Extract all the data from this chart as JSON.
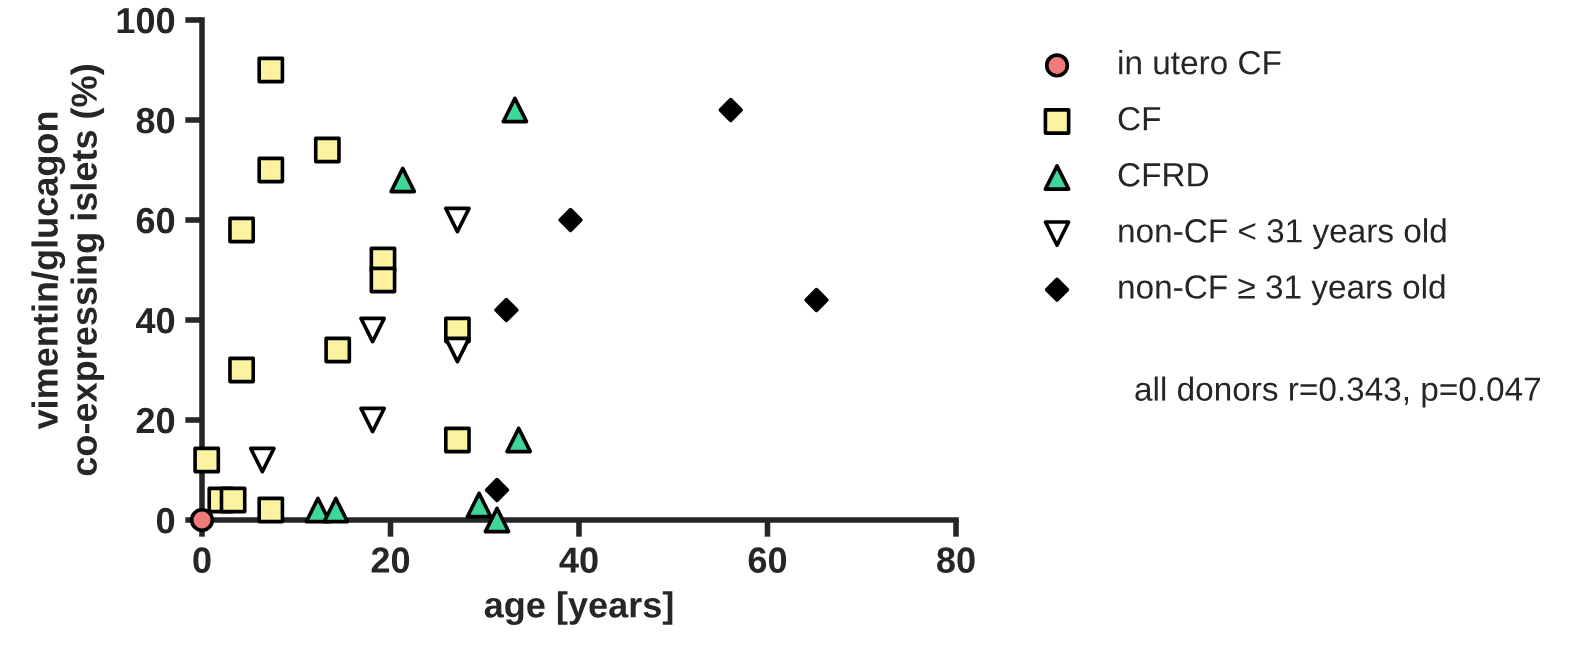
{
  "chart_data": {
    "type": "scatter",
    "xlabel": "age [years]",
    "ylabel": "vimentin/glucagon\nco-expressing islets (%)",
    "xlim": [
      0,
      80
    ],
    "xticks": [
      0,
      20,
      40,
      60,
      80
    ],
    "ylim": [
      0,
      100
    ],
    "yticks": [
      0,
      20,
      40,
      60,
      80,
      100
    ],
    "grid": false,
    "legend": "right",
    "annotations": [
      "all donors r=0.343, p=0.047"
    ],
    "series": [
      {
        "name": "in utero CF",
        "color": "#f07a7a",
        "marker": "circle",
        "x": [
          0
        ],
        "values": [
          0
        ]
      },
      {
        "name": "CF",
        "color": "#fbf3a0",
        "marker": "square",
        "x": [
          0.5,
          2,
          3.3,
          7.3,
          4.2,
          4.2,
          7.3,
          7.3,
          13.3,
          14.4,
          19.2,
          19.2,
          27.1,
          27.1
        ],
        "values": [
          12,
          4,
          4,
          2,
          58,
          30,
          90,
          70,
          74,
          34,
          52,
          48,
          38,
          16
        ]
      },
      {
        "name": "CFRD",
        "color": "#3fd69a",
        "marker": "triangle",
        "x": [
          12.3,
          14.2,
          21.3,
          33.2,
          33.6,
          29.4,
          31.3
        ],
        "values": [
          2,
          2,
          68,
          82,
          16,
          3,
          0
        ]
      },
      {
        "name": "non-CF < 31 years old",
        "color": "#ffffff",
        "marker": "triangle_down",
        "x": [
          6.4,
          18.1,
          18.1,
          27.1,
          27.1
        ],
        "values": [
          12,
          38,
          20,
          60,
          34
        ]
      },
      {
        "name": "non-CF ≥ 31 years old",
        "color": "#000000",
        "marker": "diamond",
        "x": [
          32.3,
          31.3,
          39.1,
          56.1,
          65.2
        ],
        "values": [
          42,
          6,
          60,
          82,
          44
        ]
      }
    ]
  }
}
